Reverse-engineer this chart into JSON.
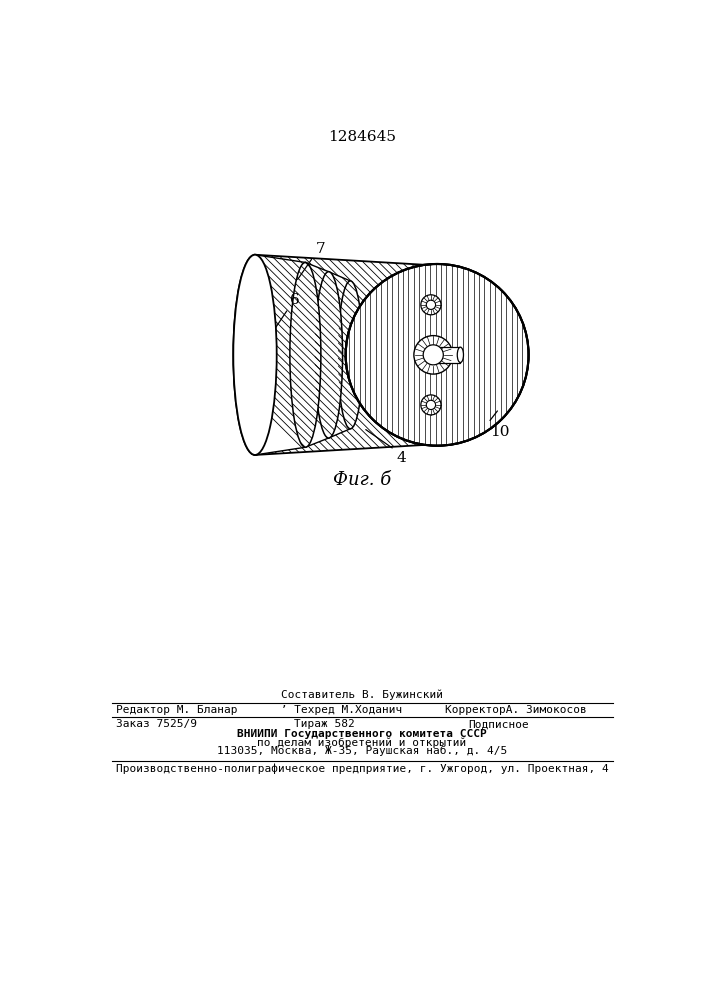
{
  "patent_number": "1284645",
  "fig_caption": "Фиг. б",
  "background_color": "#ffffff",
  "footer_line1_center": "Составитель В. Бужинский",
  "footer_line2_left": "Редактор М. Бланар",
  "footer_line2_center": " ’ Техред М.Ходанич",
  "footer_line2_right": "КорректорА. Зимокосов",
  "footer_line3_left": "Заказ 7525/9",
  "footer_line3_center": "Тираж 582",
  "footer_line3_right": "Подписное",
  "footer_line4": "ВНИИПИ Государственного комитета СССР",
  "footer_line5": "по делам изобретений и открытий",
  "footer_line6": "113035, Москва, Ж-35, Раушская наб., д. 4/5",
  "footer_line7": "Производственно-полиграфическое предприятие, г. Ужгород, ул. Проектная, 4",
  "label_7": "7",
  "label_6": "6",
  "label_4": "4",
  "label_10": "10"
}
